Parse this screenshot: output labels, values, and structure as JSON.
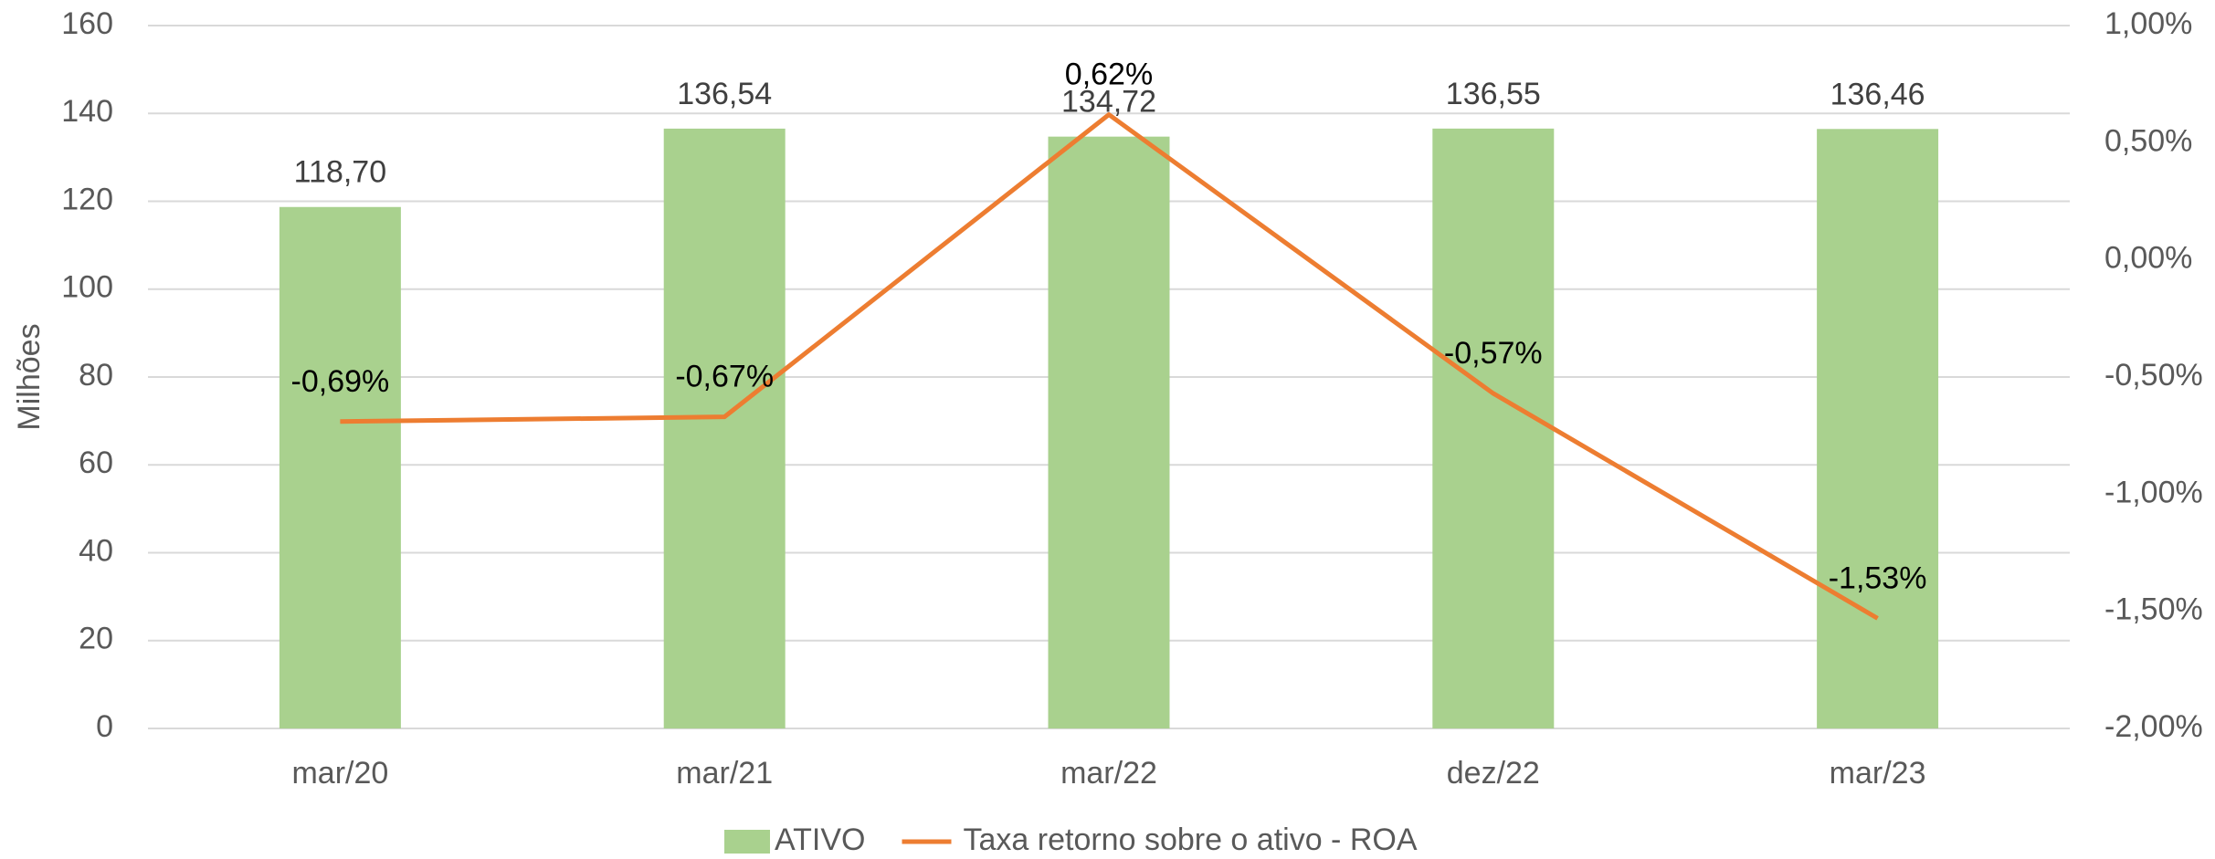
{
  "chart_data": {
    "type": "bar_line",
    "categories": [
      "mar/20",
      "mar/21",
      "mar/22",
      "dez/22",
      "mar/23"
    ],
    "ylabel": "Milhões",
    "ylim": [
      0,
      160
    ],
    "yticks": [
      0,
      20,
      40,
      60,
      80,
      100,
      120,
      140,
      160
    ],
    "y2lim": [
      -2,
      1
    ],
    "y2ticks": [
      {
        "value": -2,
        "label": "-2,00%"
      },
      {
        "value": -1.5,
        "label": "-1,50%"
      },
      {
        "value": -1,
        "label": "-1,00%"
      },
      {
        "value": -0.5,
        "label": "-0,50%"
      },
      {
        "value": 0,
        "label": "0,00%"
      },
      {
        "value": 0.5,
        "label": "0,50%"
      },
      {
        "value": 1,
        "label": "1,00%"
      }
    ],
    "grid": true,
    "legend": "bottom",
    "series": [
      {
        "name": "ATIVO",
        "type": "bar",
        "color": "#a9d18e",
        "values": [
          118.7,
          136.54,
          134.72,
          136.55,
          136.46
        ],
        "value_labels": [
          "118,70",
          "136,54",
          "134,72",
          "136,55",
          "136,46"
        ]
      },
      {
        "name": "Taxa retorno sobre o ativo - ROA",
        "type": "line",
        "axis": "y2",
        "color": "#ed7d31",
        "values": [
          -0.69,
          -0.67,
          0.62,
          -0.57,
          -1.53
        ],
        "value_labels": [
          "-0,69%",
          "-0,67%",
          "0,62%",
          "-0,57%",
          "-1,53%"
        ]
      }
    ]
  }
}
